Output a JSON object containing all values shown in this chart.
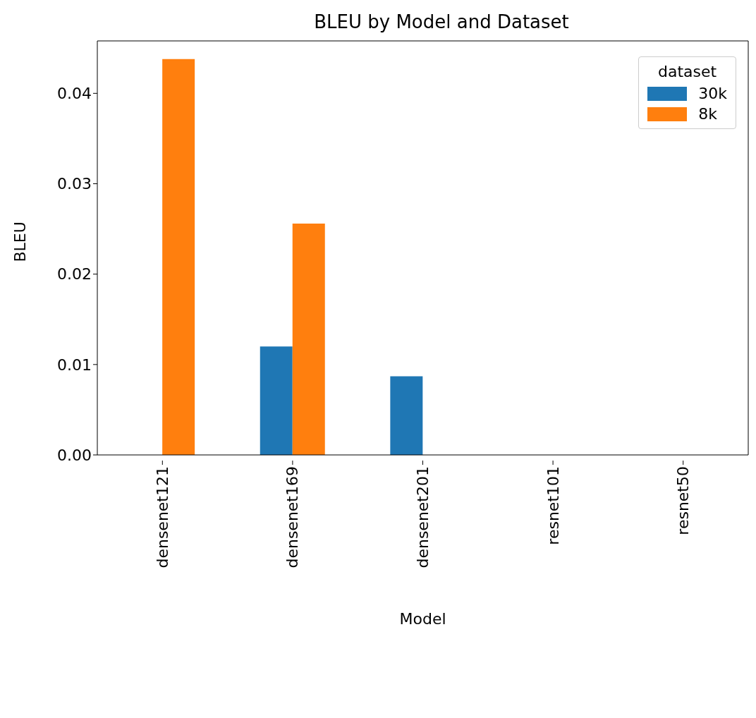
{
  "chart_data": {
    "type": "bar",
    "title": "BLEU by Model and Dataset",
    "xlabel": "Model",
    "ylabel": "BLEU",
    "legend_title": "dataset",
    "categories": [
      "densenet121",
      "densenet169",
      "densenet201",
      "resnet101",
      "resnet50"
    ],
    "series": [
      {
        "name": "30k",
        "color": "#1f77b4",
        "values": [
          null,
          0.012,
          0.0087,
          null,
          null
        ]
      },
      {
        "name": "8k",
        "color": "#ff7f0e",
        "values": [
          0.0438,
          0.0256,
          null,
          null,
          null
        ]
      }
    ],
    "ylim": [
      0,
      0.0458
    ],
    "yticks": [
      {
        "value": 0,
        "label": "0.00"
      },
      {
        "value": 0.01,
        "label": "0.01"
      },
      {
        "value": 0.02,
        "label": "0.02"
      },
      {
        "value": 0.03,
        "label": "0.03"
      },
      {
        "value": 0.04,
        "label": "0.04"
      }
    ],
    "grid": false,
    "legend": "top right"
  }
}
